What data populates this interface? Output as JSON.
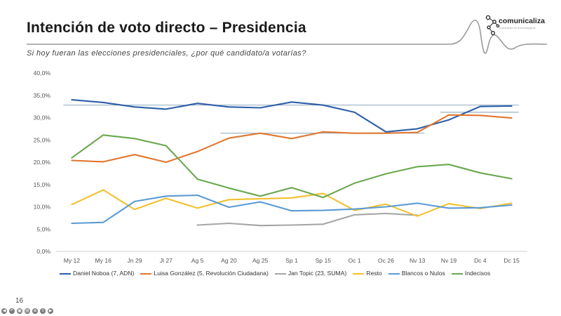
{
  "header": {
    "title": "Intención de voto directo – Presidencia",
    "subtitle": "Si hoy fueran las elecciones presidenciales, ¿por qué candidato/a votarías?"
  },
  "logo": {
    "text": "comunicaliza",
    "tagline": "consultoría estratégica",
    "color": "#222222"
  },
  "page": {
    "number": "16"
  },
  "toolbar": {
    "icons": [
      "previous-icon",
      "back-icon",
      "copy-icon",
      "slides-icon",
      "zoom-icon",
      "menu-icon",
      "next-icon"
    ]
  },
  "chart_data": {
    "type": "line",
    "title": "",
    "xlabel": "",
    "ylabel": "",
    "ylim": [
      0,
      40
    ],
    "y_ticks": [
      0,
      5,
      10,
      15,
      20,
      25,
      30,
      35,
      40
    ],
    "y_tick_labels": [
      "0,0%",
      "5,0%",
      "10,0%",
      "15,0%",
      "20,0%",
      "25,0%",
      "30,0%",
      "35,0%",
      "40,0%"
    ],
    "grid": false,
    "legend_position": "bottom",
    "categories": [
      "My 12",
      "My 16",
      "Jn 29",
      "Jl 27",
      "Ag 5",
      "Ag 20",
      "Ag 25",
      "Sp 1",
      "Sp 15",
      "Oc 1",
      "Oc 26",
      "Nv 13",
      "Nv 19",
      "Dc 4",
      "Dc 15"
    ],
    "series": [
      {
        "name": "Daniel Noboa (7, ADN)",
        "color": "#2e5fa8",
        "values": [
          34.0,
          33.4,
          32.4,
          31.9,
          33.2,
          32.4,
          32.2,
          33.5,
          32.8,
          31.2,
          26.8,
          27.5,
          29.5,
          32.5,
          32.6
        ]
      },
      {
        "name": "Luisa González (5, Revolución Ciudadana)",
        "color": "#e0772f",
        "values": [
          20.4,
          20.1,
          21.7,
          20.0,
          22.4,
          25.4,
          26.5,
          25.3,
          26.8,
          26.5,
          26.5,
          26.7,
          30.6,
          30.5,
          29.9
        ]
      },
      {
        "name": "Jan Topic (23, SUMA)",
        "color": "#a5a5a5",
        "values": [
          null,
          null,
          null,
          null,
          5.9,
          6.3,
          5.8,
          5.9,
          6.1,
          8.2,
          8.5,
          8.1,
          null,
          null,
          null
        ]
      },
      {
        "name": "Resto",
        "color": "#f2c12e",
        "values": [
          10.5,
          13.8,
          9.4,
          11.9,
          9.7,
          11.6,
          11.8,
          12.0,
          13.0,
          9.2,
          10.6,
          7.9,
          10.7,
          9.6,
          10.8
        ]
      },
      {
        "name": "Blancos o Nulos",
        "color": "#5b9bd5",
        "values": [
          6.3,
          6.5,
          11.2,
          12.4,
          12.6,
          9.9,
          11.1,
          9.1,
          9.2,
          9.5,
          10.0,
          10.8,
          9.7,
          9.8,
          10.4
        ]
      },
      {
        "name": "Indecisos",
        "color": "#6aa84f",
        "values": [
          21.0,
          26.1,
          25.3,
          23.7,
          16.2,
          14.2,
          12.4,
          14.3,
          12.1,
          15.3,
          17.4,
          19.0,
          19.5,
          17.6,
          16.3
        ]
      }
    ],
    "reference_lines": [
      {
        "series": "Daniel Noboa (7, ADN)",
        "value": 32.8,
        "from": "My 12",
        "to": "Dc 15"
      },
      {
        "series": "Luisa González (5, Revolución Ciudadana)",
        "value": 26.5,
        "from": "Ag 20",
        "to": "Nv 13"
      },
      {
        "series": "Luisa González (5, Revolución Ciudadana)",
        "value": 31.2,
        "from": "Nv 19",
        "to": "Dc 15"
      }
    ],
    "reference_line_color": "#7f9fb3"
  }
}
